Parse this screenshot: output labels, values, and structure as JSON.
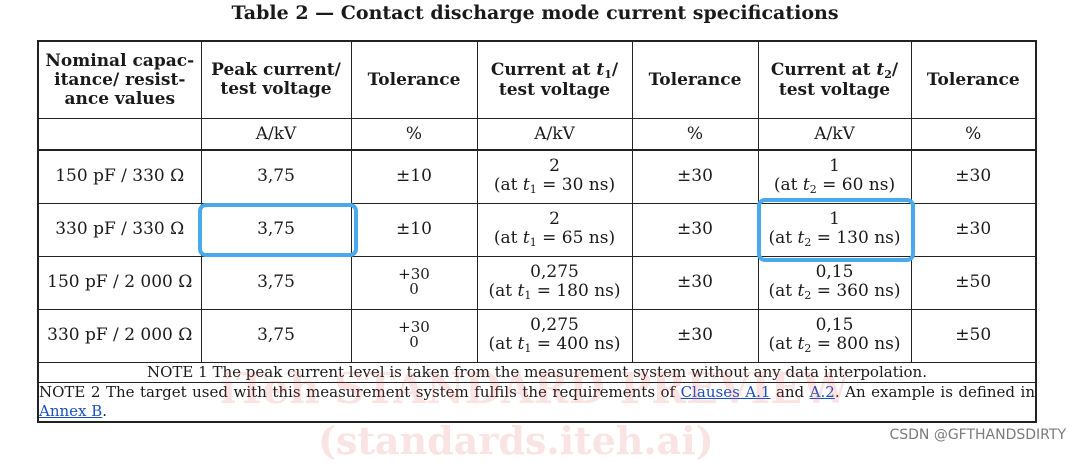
{
  "title": "Table 2 — Contact discharge mode current specifications",
  "headers": [
    "Nominal capac-itance/ resist-ance values",
    "Peak current/ test voltage",
    "Tolerance",
    "Current at t1/ test voltage",
    "Tolerance",
    "Current at t2/ test voltage",
    "Tolerance"
  ],
  "header_parts": {
    "c0_l1": "Nominal capac-",
    "c0_l2": "itance/ resist-",
    "c0_l3": "ance values",
    "c1_l1": "Peak current/",
    "c1_l2": "test voltage",
    "c2": "Tolerance",
    "c3_l1": "Current at ",
    "c3_t": "t",
    "c3_sub": "1",
    "c3_slash": "/",
    "c3_l2": "test voltage",
    "c4": "Tolerance",
    "c5_l1": "Current at ",
    "c5_t": "t",
    "c5_sub": "2",
    "c5_slash": "/",
    "c5_l2": "test voltage",
    "c6": "Tolerance"
  },
  "units": [
    "",
    "A/kV",
    "%",
    "A/kV",
    "%",
    "A/kV",
    "%"
  ],
  "rows": [
    {
      "value": "150 pF / 330 Ω",
      "peak": "3,75",
      "tol1": "±10",
      "tol1_up": "",
      "tol1_down": "",
      "i1": "2",
      "t1_pre": "(at ",
      "t1_val": " = 30 ns)",
      "tol2": "±30",
      "i2": "1",
      "t2_pre": "(at ",
      "t2_val": " = 60 ns)",
      "tol3": "±30"
    },
    {
      "value": "330 pF / 330 Ω",
      "peak": "3,75",
      "tol1": "±10",
      "tol1_up": "",
      "tol1_down": "",
      "i1": "2",
      "t1_pre": "(at ",
      "t1_val": " = 65 ns)",
      "tol2": "±30",
      "i2": "1",
      "t2_pre": "(at ",
      "t2_val": " = 130 ns)",
      "tol3": "±30"
    },
    {
      "value": "150 pF / 2 000 Ω",
      "peak": "3,75",
      "tol1": "",
      "tol1_up": "+30",
      "tol1_down": "0",
      "i1": "0,275",
      "t1_pre": "(at ",
      "t1_val": " = 180 ns)",
      "tol2": "±30",
      "i2": "0,15",
      "t2_pre": "(at ",
      "t2_val": " = 360 ns)",
      "tol3": "±50"
    },
    {
      "value": "330 pF / 2 000 Ω",
      "peak": "3,75",
      "tol1": "",
      "tol1_up": "+30",
      "tol1_down": "0",
      "i1": "0,275",
      "t1_pre": "(at ",
      "t1_val": " = 400 ns)",
      "tol2": "±30",
      "i2": "0,15",
      "t2_pre": "(at ",
      "t2_val": " = 800 ns)",
      "tol3": "±50"
    }
  ],
  "t_symbol": "t",
  "sub1": "1",
  "sub2": "2",
  "notes": {
    "note1": "NOTE 1   The peak current level is taken from the measurement system without any data interpolation.",
    "note2_pre": "NOTE 2   The target used with this measurement system fulfils the requirements of ",
    "note2_link1": "Clauses A.1",
    "note2_mid": " and ",
    "note2_link2": "A.2",
    "note2_post": ". An example is defined in ",
    "note2_link3": "Annex B",
    "note2_end": "."
  },
  "watermark": {
    "line1": "iTeh STANDARD PREVIEW",
    "line2": "(standards.iteh.ai)"
  },
  "footer_mark": "CSDN @GFTHANDSDIRTY",
  "colors": {
    "highlight": "#4aa8ec",
    "link": "#1a4fc0",
    "watermark": "#dc5050"
  }
}
